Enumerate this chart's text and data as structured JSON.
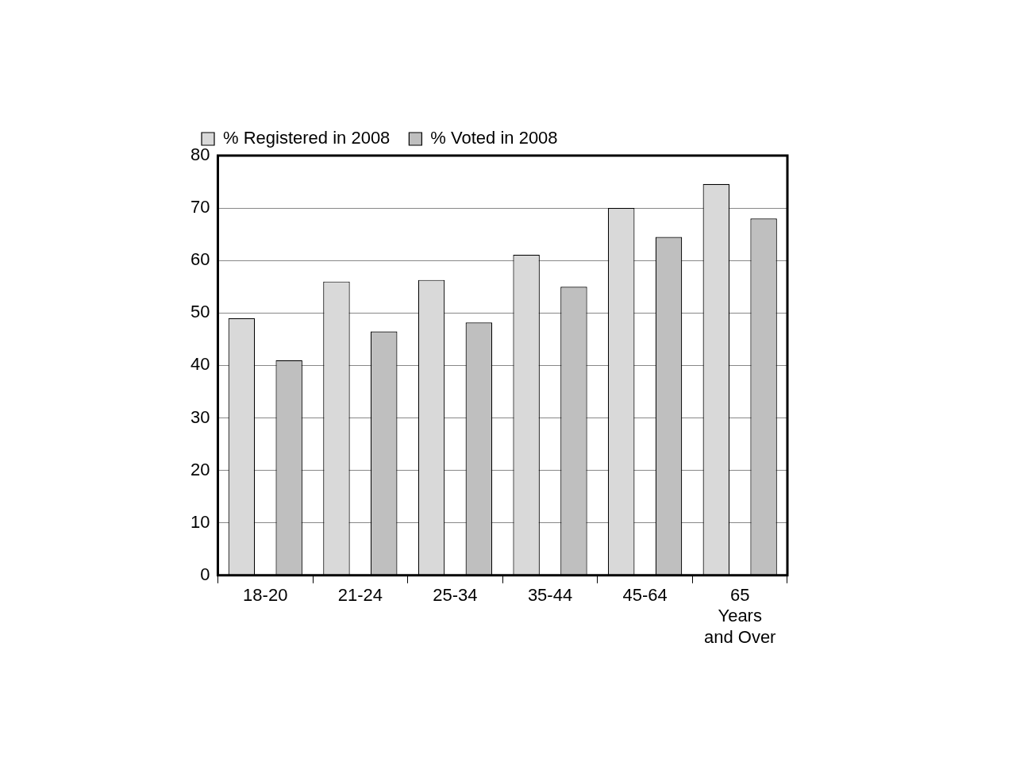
{
  "chart_data": {
    "type": "bar",
    "categories": [
      "18-20",
      "21-24",
      "25-34",
      "35-44",
      "45-64",
      "65 Years and Over"
    ],
    "series": [
      {
        "name": "% Registered in 2008",
        "color": "#d9d9d9",
        "values": [
          49,
          56,
          56.3,
          61.1,
          70,
          74.6
        ]
      },
      {
        "name": "% Voted in 2008",
        "color": "#bfbfbf",
        "values": [
          41,
          46.5,
          48.2,
          55,
          64.5,
          68
        ]
      }
    ],
    "ylim": [
      0,
      80
    ],
    "yticks": [
      0,
      10,
      20,
      30,
      40,
      50,
      60,
      70,
      80
    ],
    "grid": "y",
    "legend": "top left"
  }
}
